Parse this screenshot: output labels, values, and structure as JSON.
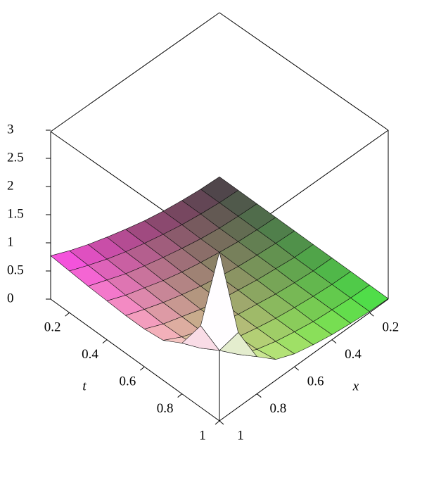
{
  "chart_data": {
    "type": "surface",
    "x_label": "x",
    "t_label": "t",
    "t": [
      0.1,
      0.2,
      0.3,
      0.4,
      0.5,
      0.6,
      0.7,
      0.8,
      0.9,
      1
    ],
    "x": [
      0.1,
      0.2,
      0.3,
      0.4,
      0.5,
      0.6,
      0.7,
      0.8,
      0.9,
      1
    ],
    "z": [
      [
        0.01,
        0.03,
        0.07,
        0.12,
        0.19,
        0.28,
        0.38,
        0.49,
        0.62,
        0.77
      ],
      [
        0.01,
        0.03,
        0.07,
        0.12,
        0.19,
        0.27,
        0.36,
        0.47,
        0.6,
        0.74
      ],
      [
        0.01,
        0.03,
        0.06,
        0.11,
        0.18,
        0.26,
        0.35,
        0.45,
        0.58,
        0.71
      ],
      [
        0.01,
        0.03,
        0.06,
        0.11,
        0.17,
        0.24,
        0.33,
        0.44,
        0.55,
        0.69
      ],
      [
        0.01,
        0.03,
        0.06,
        0.1,
        0.16,
        0.23,
        0.32,
        0.42,
        0.54,
        0.67
      ],
      [
        0.01,
        0.02,
        0.06,
        0.1,
        0.16,
        0.22,
        0.3,
        0.41,
        0.52,
        0.67
      ],
      [
        0.01,
        0.02,
        0.05,
        0.09,
        0.15,
        0.21,
        0.3,
        0.4,
        0.53,
        0.71
      ],
      [
        0.01,
        0.02,
        0.05,
        0.09,
        0.14,
        0.21,
        0.29,
        0.41,
        0.57,
        0.9
      ],
      [
        0.01,
        0.02,
        0.05,
        0.08,
        0.14,
        0.21,
        0.31,
        0.46,
        0.77,
        1.45
      ],
      [
        0.01,
        0.02,
        0.05,
        0.09,
        0.15,
        0.23,
        0.37,
        0.66,
        1.33,
        3.0
      ]
    ],
    "tlim": [
      0.1,
      1
    ],
    "xlim": [
      0.1,
      1
    ],
    "zlim": [
      0,
      3
    ],
    "tticks": [
      0.2,
      0.4,
      0.6,
      0.8,
      1
    ],
    "xticks": [
      0.2,
      0.4,
      0.6,
      0.8,
      1
    ],
    "zticks": [
      0,
      0.5,
      1,
      1.5,
      2,
      2.5,
      3
    ]
  }
}
